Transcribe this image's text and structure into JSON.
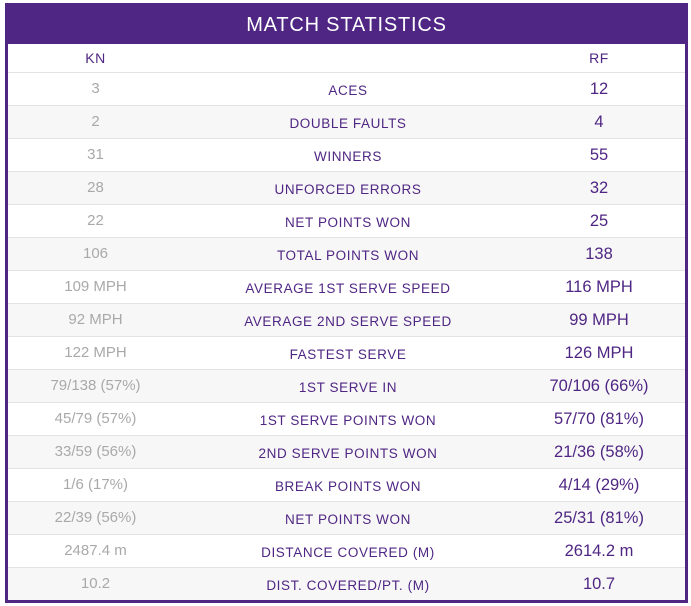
{
  "title": "MATCH STATISTICS",
  "players": {
    "left": "KN",
    "right": "RF"
  },
  "colors": {
    "accent": "#4f2683",
    "muted": "#a9a9a9",
    "divider": "#e3e3e3"
  },
  "rows": [
    {
      "label": "ACES",
      "left": "3",
      "right": "12"
    },
    {
      "label": "DOUBLE FAULTS",
      "left": "2",
      "right": "4"
    },
    {
      "label": "WINNERS",
      "left": "31",
      "right": "55"
    },
    {
      "label": "UNFORCED ERRORS",
      "left": "28",
      "right": "32"
    },
    {
      "label": "NET POINTS WON",
      "left": "22",
      "right": "25"
    },
    {
      "label": "TOTAL POINTS WON",
      "left": "106",
      "right": "138"
    },
    {
      "label": "AVERAGE 1ST SERVE SPEED",
      "left": "109 MPH",
      "right": "116 MPH"
    },
    {
      "label": "AVERAGE 2ND SERVE SPEED",
      "left": "92 MPH",
      "right": "99 MPH"
    },
    {
      "label": "FASTEST SERVE",
      "left": "122 MPH",
      "right": "126 MPH"
    },
    {
      "label": "1ST SERVE IN",
      "left": "79/138 (57%)",
      "right": "70/106 (66%)"
    },
    {
      "label": "1ST SERVE POINTS WON",
      "left": "45/79 (57%)",
      "right": "57/70 (81%)"
    },
    {
      "label": "2ND SERVE POINTS WON",
      "left": "33/59 (56%)",
      "right": "21/36 (58%)"
    },
    {
      "label": "BREAK POINTS WON",
      "left": "1/6 (17%)",
      "right": "4/14 (29%)"
    },
    {
      "label": "NET POINTS WON",
      "left": "22/39 (56%)",
      "right": "25/31 (81%)"
    },
    {
      "label": "DISTANCE COVERED (M)",
      "left": "2487.4 m",
      "right": "2614.2 m"
    },
    {
      "label": "DIST. COVERED/PT. (M)",
      "left": "10.2",
      "right": "10.7"
    }
  ]
}
